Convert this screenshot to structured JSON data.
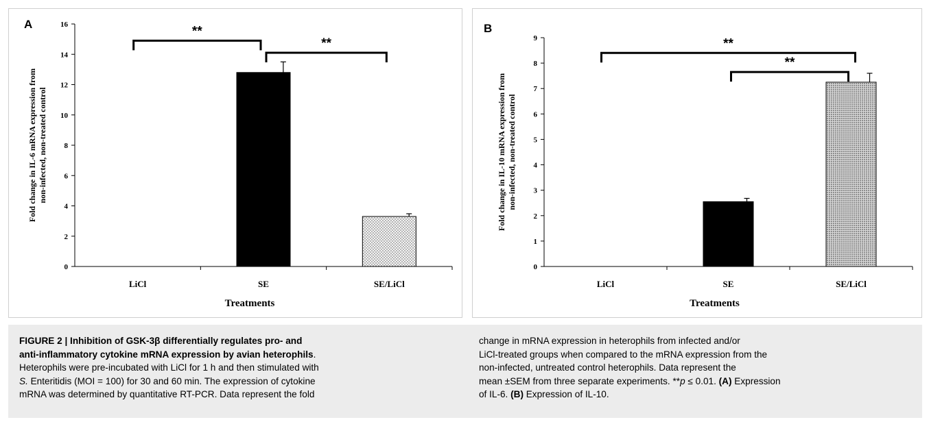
{
  "chart_data": [
    {
      "panel_label": "A",
      "type": "bar",
      "categories": [
        "LiCl",
        "SE",
        "SE/LiCl"
      ],
      "values": [
        0,
        12.8,
        3.3
      ],
      "errors": [
        0,
        0.7,
        0.18
      ],
      "bar_fills": [
        "none",
        "solid-black",
        "dotted-light"
      ],
      "xlabel": "Treatments",
      "ylabel_line1": "Fold change in IL-6 mRNA expression from",
      "ylabel_line2": "non-infected, non-treated control",
      "ylim": [
        0,
        16
      ],
      "yticks": [
        "0",
        "2",
        "4",
        "6",
        "8",
        "10",
        "12",
        "14",
        "16"
      ],
      "significance": [
        {
          "from": 0,
          "to": 1,
          "label": "**",
          "y": 14.9
        },
        {
          "from": 1,
          "to": 2,
          "label": "**",
          "y": 14.1
        }
      ]
    },
    {
      "panel_label": "B",
      "type": "bar",
      "categories": [
        "LiCl",
        "SE",
        "SE/LiCl"
      ],
      "values": [
        0,
        2.55,
        7.25
      ],
      "errors": [
        0,
        0.13,
        0.35
      ],
      "bar_fills": [
        "none",
        "solid-black",
        "dotted-dark"
      ],
      "xlabel": "Treatments",
      "ylabel_line1": "Fold change in IL-10 mRNA expression from",
      "ylabel_line2": "non-infected, non-treated control",
      "ylim": [
        0,
        9
      ],
      "yticks": [
        "0",
        "1",
        "2",
        "3",
        "4",
        "5",
        "6",
        "7",
        "8",
        "9"
      ],
      "significance": [
        {
          "from": 0,
          "to": 2,
          "label": "**",
          "y": 8.4
        },
        {
          "from": 1,
          "to": 2,
          "label": "**",
          "y": 7.65
        }
      ]
    }
  ],
  "caption": {
    "title_line1": "FIGURE 2 | Inhibition of GSK-3β differentially regulates pro- and",
    "title_line2": "anti-inflammatory cytokine mRNA expression by avian heterophils",
    "title_end": ".",
    "l3": "Heterophils were pre-incubated with LiCl for 1 h and then stimulated with",
    "l4_species": "S.",
    "l4_rest": " Enteritidis (MOI = 100) for 30 and 60 min. The expression of cytokine",
    "l5": "mRNA was determined by quantitative RT-PCR. Data represent the fold",
    "r1": "change in mRNA expression in heterophils from infected and/or",
    "r2": "LiCl-treated groups when compared to the mRNA expression from the",
    "r3": "non-infected, untreated control heterophils. Data represent the",
    "r4_pre": "mean ±SEM from three separate experiments. **",
    "r4_p": "p",
    "r4_mid": " ≤ 0.01. ",
    "r4_a": "(A)",
    "r4_end": " Expression",
    "r5_pre": "of IL-6. ",
    "r5_b": "(B)",
    "r5_end": " Expression of IL-10."
  }
}
